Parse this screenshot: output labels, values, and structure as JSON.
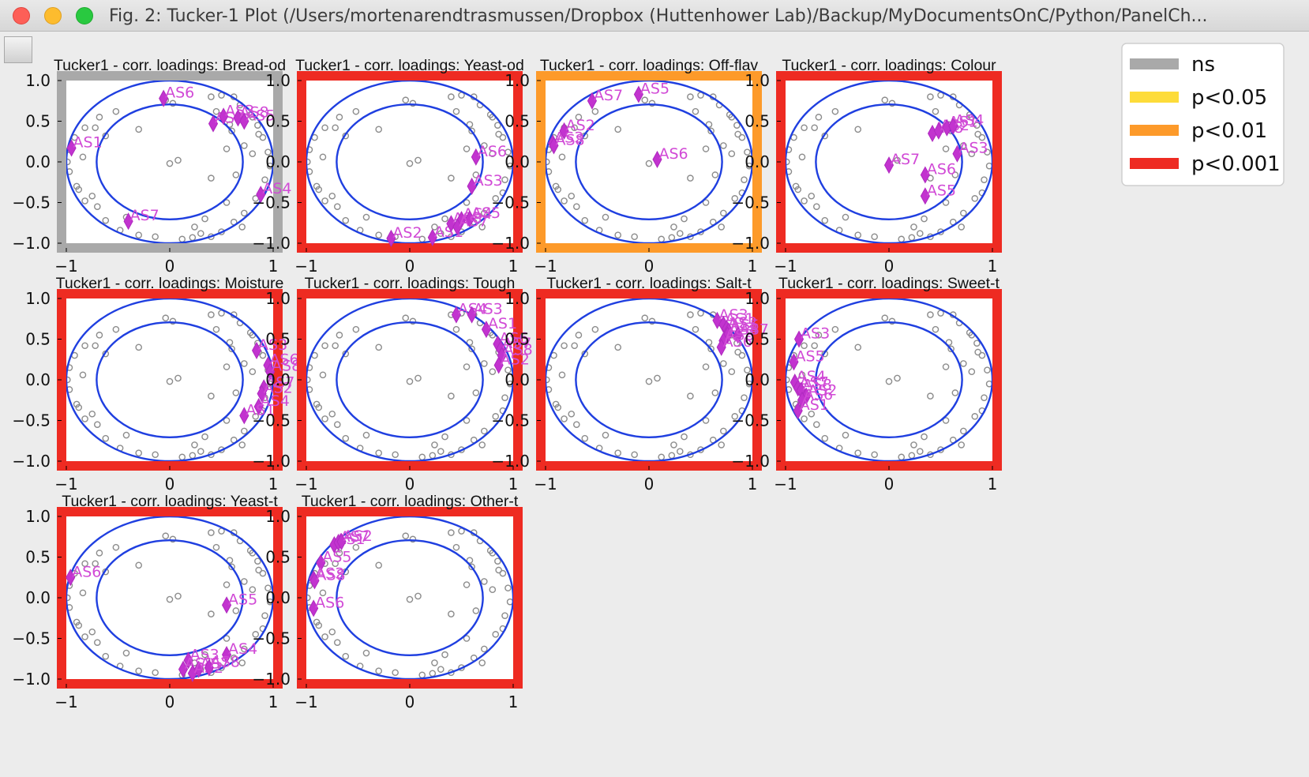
{
  "window": {
    "title": "Fig. 2: Tucker-1 Plot (/Users/mortenarendtrasmussen/Dropbox (Huttenhower Lab)/Backup/MyDocumentsOnC/Python/PanelCh..."
  },
  "legend": {
    "placement": "top-right",
    "items": [
      {
        "label": "ns",
        "color": "#a9a9a9"
      },
      {
        "label": "p<0.05",
        "color": "#fddc3a"
      },
      {
        "label": "p<0.01",
        "color": "#fd9a2a"
      },
      {
        "label": "p<0.001",
        "color": "#ee2b22"
      }
    ]
  },
  "chart_data": [
    {
      "type": "scatter",
      "title": "Tucker1 - corr. loadings: Bread-od",
      "significance": "ns",
      "xlim": [
        -1,
        1
      ],
      "ylim": [
        -1,
        1
      ],
      "xticks": [
        "−1",
        "0",
        "1"
      ],
      "yticks": [
        "1.0",
        "0.5",
        "0.0",
        "−0.5",
        "−1.0"
      ],
      "circles": [
        1.0,
        0.707
      ],
      "assessors": [
        {
          "label": "AS6",
          "x": -0.06,
          "y": 0.78
        },
        {
          "label": "AS1",
          "x": -0.95,
          "y": 0.17
        },
        {
          "label": "AS2",
          "x": 0.42,
          "y": 0.47
        },
        {
          "label": "AS3",
          "x": 0.52,
          "y": 0.56
        },
        {
          "label": "AS8",
          "x": 0.66,
          "y": 0.54
        },
        {
          "label": "AS5",
          "x": 0.72,
          "y": 0.5
        },
        {
          "label": "AS4",
          "x": 0.88,
          "y": -0.4
        },
        {
          "label": "AS7",
          "x": -0.4,
          "y": -0.73
        }
      ]
    },
    {
      "type": "scatter",
      "title": "Tucker1 - corr. loadings: Yeast-od",
      "significance": "p<0.001",
      "xlim": [
        -1,
        1
      ],
      "ylim": [
        -1,
        1
      ],
      "xticks": [
        "−1",
        "0",
        "1"
      ],
      "yticks": [
        "1.0",
        "0.5",
        "0.0",
        "−0.5",
        "−1.0"
      ],
      "circles": [
        1.0,
        0.707
      ],
      "assessors": [
        {
          "label": "AS6",
          "x": 0.64,
          "y": 0.06
        },
        {
          "label": "AS3",
          "x": 0.6,
          "y": -0.3
        },
        {
          "label": "AS2",
          "x": -0.18,
          "y": -0.94
        },
        {
          "label": "AS1",
          "x": 0.22,
          "y": -0.93
        },
        {
          "label": "AS8",
          "x": 0.4,
          "y": -0.76
        },
        {
          "label": "AS4",
          "x": 0.5,
          "y": -0.71
        },
        {
          "label": "AS5",
          "x": 0.58,
          "y": -0.7
        },
        {
          "label": "AS7",
          "x": 0.46,
          "y": -0.8
        }
      ]
    },
    {
      "type": "scatter",
      "title": "Tucker1 - corr. loadings: Off-flav",
      "significance": "p<0.01",
      "xlim": [
        -1,
        1
      ],
      "ylim": [
        -1,
        1
      ],
      "xticks": [
        "−1",
        "0",
        "1"
      ],
      "yticks": [
        "1.0",
        "0.5",
        "0.0",
        "−0.5",
        "−1.0"
      ],
      "circles": [
        1.0,
        0.707
      ],
      "assessors": [
        {
          "label": "AS7",
          "x": -0.55,
          "y": 0.75
        },
        {
          "label": "AS5",
          "x": -0.1,
          "y": 0.83
        },
        {
          "label": "AS2",
          "x": -0.82,
          "y": 0.38
        },
        {
          "label": "AS3",
          "x": -0.93,
          "y": 0.23
        },
        {
          "label": "AS8",
          "x": -0.92,
          "y": 0.2
        },
        {
          "label": "AS6",
          "x": 0.08,
          "y": 0.03
        }
      ]
    },
    {
      "type": "scatter",
      "title": "Tucker1 - corr. loadings: Colour",
      "significance": "p<0.001",
      "xlim": [
        -1,
        1
      ],
      "ylim": [
        -1,
        1
      ],
      "xticks": [
        "−1",
        "0",
        "1"
      ],
      "yticks": [
        "1.0",
        "0.5",
        "0.0",
        "−0.5",
        "−1.0"
      ],
      "circles": [
        1.0,
        0.707
      ],
      "assessors": [
        {
          "label": "AS7",
          "x": 0.0,
          "y": -0.04
        },
        {
          "label": "AS8",
          "x": 0.42,
          "y": 0.35
        },
        {
          "label": "AS2",
          "x": 0.48,
          "y": 0.38
        },
        {
          "label": "AS1",
          "x": 0.56,
          "y": 0.42
        },
        {
          "label": "AS4",
          "x": 0.62,
          "y": 0.44
        },
        {
          "label": "AS3",
          "x": 0.66,
          "y": 0.1
        },
        {
          "label": "AS6",
          "x": 0.35,
          "y": -0.16
        },
        {
          "label": "AS5",
          "x": 0.35,
          "y": -0.42
        }
      ]
    },
    {
      "type": "scatter",
      "title": "Tucker1 - corr. loadings: Moisture",
      "significance": "p<0.001",
      "xlim": [
        -1,
        1
      ],
      "ylim": [
        -1,
        1
      ],
      "xticks": [
        "−1",
        "0",
        "1"
      ],
      "yticks": [
        "1.0",
        "0.5",
        "0.0",
        "−0.5",
        "−1.0"
      ],
      "circles": [
        1.0,
        0.707
      ],
      "assessors": [
        {
          "label": "AS3",
          "x": 0.84,
          "y": 0.36
        },
        {
          "label": "AS6",
          "x": 0.95,
          "y": 0.18
        },
        {
          "label": "AS8",
          "x": 0.97,
          "y": 0.1
        },
        {
          "label": "AS7",
          "x": 0.91,
          "y": -0.1
        },
        {
          "label": "AS2",
          "x": 0.89,
          "y": -0.17
        },
        {
          "label": "AS4",
          "x": 0.86,
          "y": -0.33
        },
        {
          "label": "AS1",
          "x": 0.72,
          "y": -0.44
        }
      ]
    },
    {
      "type": "scatter",
      "title": "Tucker1 - corr. loadings: Tough",
      "significance": "p<0.001",
      "xlim": [
        -1,
        1
      ],
      "ylim": [
        -1,
        1
      ],
      "xticks": [
        "−1",
        "0",
        "1"
      ],
      "yticks": [
        "1.0",
        "0.5",
        "0.0",
        "−0.5",
        "−1.0"
      ],
      "circles": [
        1.0,
        0.707
      ],
      "assessors": [
        {
          "label": "AS4",
          "x": 0.45,
          "y": 0.8
        },
        {
          "label": "AS3",
          "x": 0.6,
          "y": 0.8
        },
        {
          "label": "AS1",
          "x": 0.74,
          "y": 0.62
        },
        {
          "label": "AS6",
          "x": 0.85,
          "y": 0.44
        },
        {
          "label": "AS7",
          "x": 0.88,
          "y": 0.38
        },
        {
          "label": "AS8",
          "x": 0.89,
          "y": 0.3
        },
        {
          "label": "AS2",
          "x": 0.86,
          "y": 0.18
        }
      ]
    },
    {
      "type": "scatter",
      "title": "Tucker1 - corr. loadings: Salt-t",
      "significance": "p<0.001",
      "xlim": [
        -1,
        1
      ],
      "ylim": [
        -1,
        1
      ],
      "xticks": [
        "−1",
        "0",
        "1"
      ],
      "yticks": [
        "1.0",
        "0.5",
        "0.0",
        "−0.5",
        "−1.0"
      ],
      "circles": [
        1.0,
        0.707
      ],
      "assessors": [
        {
          "label": "AS3",
          "x": 0.66,
          "y": 0.73
        },
        {
          "label": "AS1",
          "x": 0.72,
          "y": 0.68
        },
        {
          "label": "AS2",
          "x": 0.75,
          "y": 0.63
        },
        {
          "label": "AS5",
          "x": 0.77,
          "y": 0.6
        },
        {
          "label": "AS4",
          "x": 0.76,
          "y": 0.55
        },
        {
          "label": "AS7",
          "x": 0.86,
          "y": 0.55
        },
        {
          "label": "AS8",
          "x": 0.72,
          "y": 0.48
        },
        {
          "label": "AS6",
          "x": 0.7,
          "y": 0.4
        }
      ]
    },
    {
      "type": "scatter",
      "title": "Tucker1 - corr. loadings: Sweet-t",
      "significance": "p<0.001",
      "xlim": [
        -1,
        1
      ],
      "ylim": [
        -1,
        1
      ],
      "xticks": [
        "−1",
        "0",
        "1"
      ],
      "yticks": [
        "1.0",
        "0.5",
        "0.0",
        "−0.5",
        "−1.0"
      ],
      "circles": [
        1.0,
        0.707
      ],
      "assessors": [
        {
          "label": "AS3",
          "x": -0.87,
          "y": 0.5
        },
        {
          "label": "AS5",
          "x": -0.92,
          "y": 0.22
        },
        {
          "label": "AS4",
          "x": -0.91,
          "y": -0.03
        },
        {
          "label": "AS7",
          "x": -0.88,
          "y": -0.1
        },
        {
          "label": "AS8",
          "x": -0.85,
          "y": -0.13
        },
        {
          "label": "AS2",
          "x": -0.8,
          "y": -0.2
        },
        {
          "label": "AS6",
          "x": -0.84,
          "y": -0.25
        },
        {
          "label": "AS1",
          "x": -0.88,
          "y": -0.38
        }
      ]
    },
    {
      "type": "scatter",
      "title": "Tucker1 - corr. loadings: Yeast-t",
      "significance": "p<0.001",
      "xlim": [
        -1,
        1
      ],
      "ylim": [
        -1,
        1
      ],
      "xticks": [
        "−1",
        "0",
        "1"
      ],
      "yticks": [
        "1.0",
        "0.5",
        "0.0",
        "−0.5",
        "−1.0"
      ],
      "circles": [
        1.0,
        0.707
      ],
      "assessors": [
        {
          "label": "AS6",
          "x": -0.96,
          "y": 0.25
        },
        {
          "label": "AS5",
          "x": 0.55,
          "y": -0.09
        },
        {
          "label": "AS4",
          "x": 0.55,
          "y": -0.7
        },
        {
          "label": "AS3",
          "x": 0.18,
          "y": -0.77
        },
        {
          "label": "AS1",
          "x": 0.13,
          "y": -0.88
        },
        {
          "label": "AS7",
          "x": 0.28,
          "y": -0.88
        },
        {
          "label": "AS2",
          "x": 0.22,
          "y": -0.93
        },
        {
          "label": "AS8",
          "x": 0.38,
          "y": -0.86
        }
      ]
    },
    {
      "type": "scatter",
      "title": "Tucker1 - corr. loadings: Other-t",
      "significance": "p<0.001",
      "xlim": [
        -1,
        1
      ],
      "ylim": [
        -1,
        1
      ],
      "xticks": [
        "−1",
        "0",
        "1"
      ],
      "yticks": [
        "1.0",
        "0.5",
        "0.0",
        "−0.5",
        "−1.0"
      ],
      "circles": [
        1.0,
        0.707
      ],
      "assessors": [
        {
          "label": "AS1",
          "x": -0.73,
          "y": 0.65
        },
        {
          "label": "AS7",
          "x": -0.69,
          "y": 0.68
        },
        {
          "label": "AS2",
          "x": -0.66,
          "y": 0.69
        },
        {
          "label": "AS5",
          "x": -0.86,
          "y": 0.43
        },
        {
          "label": "AS3",
          "x": -0.93,
          "y": 0.23
        },
        {
          "label": "AS8",
          "x": -0.92,
          "y": 0.21
        },
        {
          "label": "AS6",
          "x": -0.93,
          "y": -0.13
        }
      ]
    }
  ]
}
